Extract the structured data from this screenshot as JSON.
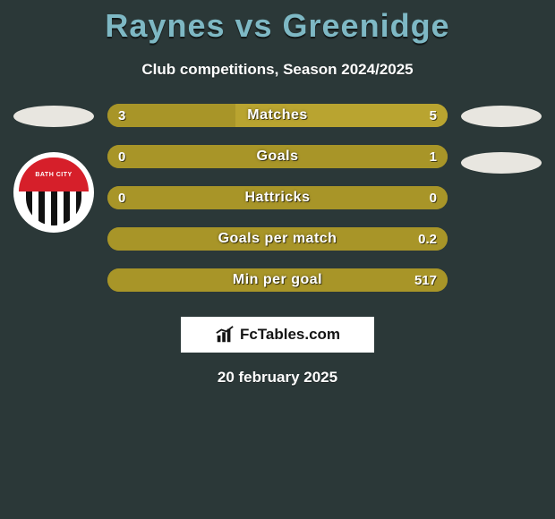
{
  "title": "Raynes vs Greenidge",
  "subtitle": "Club competitions, Season 2024/2025",
  "date": "20 february 2025",
  "footer_brand": "FcTables.com",
  "colors": {
    "background": "#2b3838",
    "title": "#7eb8c4",
    "text": "#ffffff",
    "bar_left": "#a89528",
    "bar_right": "#a89528",
    "bar_bg_default": "#a89528",
    "ellipse": "#e8e6e0",
    "badge_red": "#d61f2a"
  },
  "left_club_badge_text": "BATH CITY",
  "stats": [
    {
      "label": "Matches",
      "left_val": "3",
      "right_val": "5",
      "left_pct": 37.5,
      "right_pct": 62.5,
      "left_color": "#a89528",
      "right_color": "#b9a430"
    },
    {
      "label": "Goals",
      "left_val": "0",
      "right_val": "1",
      "left_pct": 0,
      "right_pct": 100,
      "left_color": "#a89528",
      "right_color": "#a89528"
    },
    {
      "label": "Hattricks",
      "left_val": "0",
      "right_val": "0",
      "left_pct": 50,
      "right_pct": 50,
      "left_color": "#a89528",
      "right_color": "#a89528"
    },
    {
      "label": "Goals per match",
      "left_val": "",
      "right_val": "0.2",
      "left_pct": 0,
      "right_pct": 100,
      "left_color": "#a89528",
      "right_color": "#a89528"
    },
    {
      "label": "Min per goal",
      "left_val": "",
      "right_val": "517",
      "left_pct": 0,
      "right_pct": 100,
      "left_color": "#a89528",
      "right_color": "#a89528"
    }
  ]
}
